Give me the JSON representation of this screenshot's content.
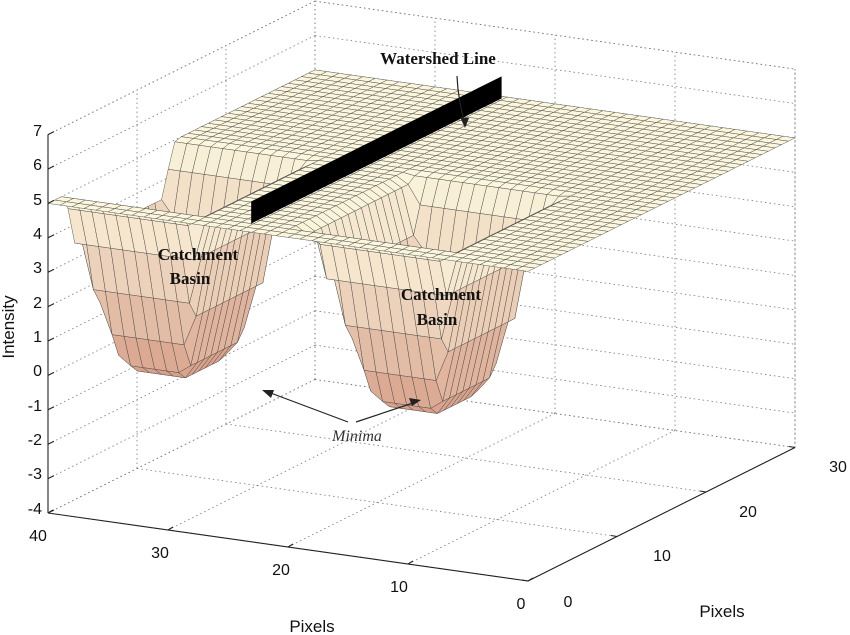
{
  "chart_data": {
    "type": "surface",
    "title": "",
    "xlabel": "Pixels",
    "ylabel": "Pixels",
    "zlabel": "Intensity",
    "x_ticks": [
      "40",
      "30",
      "20",
      "10",
      "0"
    ],
    "y_ticks": [
      "0",
      "10",
      "20",
      "30"
    ],
    "z_ticks": [
      "7",
      "6",
      "5",
      "4",
      "3",
      "2",
      "1",
      "0",
      "-1",
      "-2",
      "-3",
      "-4"
    ],
    "xlim": [
      0,
      40
    ],
    "ylim": [
      0,
      30
    ],
    "zlim": [
      -4,
      7
    ],
    "grid": true,
    "surface_plateau_intensity": 5,
    "minima_intensity": -0.5,
    "annotations": {
      "watershed": "Watershed Line",
      "basin1": [
        "Catchment",
        "Basin"
      ],
      "basin2": [
        "Catchment",
        "Basin"
      ],
      "minima": "Minima"
    },
    "colors": {
      "surface_high": "#fbf6dc",
      "surface_low": "#d79e88",
      "mesh": "#4a4a4a",
      "watershed": "#000000"
    }
  }
}
